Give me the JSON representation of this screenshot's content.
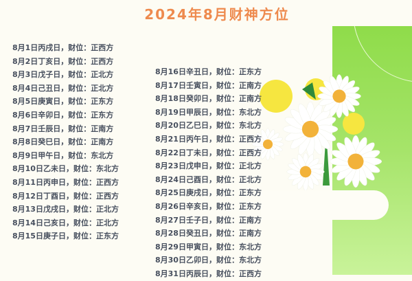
{
  "title": "2024年8月财神方位",
  "colors": {
    "title": "#ee8a4e",
    "text": "#474f5e",
    "panel_green": "#8fdc4a"
  },
  "image": "daisy-bouquet",
  "entries": [
    "8月1日丙戌日，财位：正西方",
    "8月2日丁亥日，财位：正西方",
    "8月3日戊子日，财位：正北方",
    "8月4日己丑日，财位：正北方",
    "8月5日庚寅日，财位：正东方",
    "8月6日辛卯日，财位：正东方",
    "8月7日壬辰日，财位：正南方",
    "8月8日癸巳日，财位：正南方",
    "8月9日甲午日，财位：东北方",
    "8月10日乙未日，财位：东北方",
    "8月11日丙申日，财位：正西方",
    "8月12日丁酉日，财位：正西方",
    "8月13日戊戌日，财位：正北方",
    "8月14日己亥日，财位：正北方",
    "8月15日庚子日，财位：正东方",
    "8月16日辛丑日，财位：正东方",
    "8月17日壬寅日，财位：正南方",
    "8月18日癸卯日，财位：正南方",
    "8月19日甲辰日，财位：东北方",
    "8月20日乙巳日，财位：东北方",
    "8月21日丙午日，财位：正西方",
    "8月22日丁未日，财位：正西方",
    "8月23日戊申日，财位：正北方",
    "8月24日己酉日，财位：正北方",
    "8月25日庚戌日，财位：正东方",
    "8月26日辛亥日，财位：正东方",
    "8月27日壬子日，财位：正南方",
    "8月28日癸丑日，财位：正南方",
    "8月29日甲寅日，财位：东北方",
    "8月30日乙卯日，财位：东北方",
    "8月31日丙辰日，财位：正西方"
  ]
}
